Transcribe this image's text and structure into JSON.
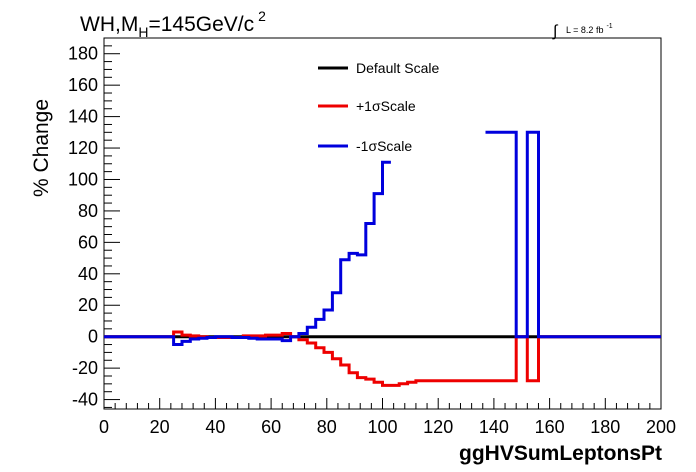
{
  "chart_data": {
    "type": "line",
    "title": {
      "prefix": "WH,M",
      "sub": "H",
      "middle": "=145GeV/c",
      "sup": "2"
    },
    "lumi": {
      "symbol": "∫",
      "text": "L = 8.2 fb",
      "sup": "-1"
    },
    "xlabel": "ggHVSumLeptonsPt",
    "ylabel": "% Change",
    "xlim": [
      0,
      200
    ],
    "ylim": [
      -46,
      190
    ],
    "x_ticks": [
      "0",
      "20",
      "40",
      "60",
      "80",
      "100",
      "120",
      "140",
      "160",
      "180",
      "200"
    ],
    "y_ticks": [
      "-40",
      "-20",
      "0",
      "20",
      "40",
      "60",
      "80",
      "100",
      "120",
      "140",
      "160",
      "180"
    ],
    "legend_position": "top-center",
    "series": [
      {
        "name": "Default Scale",
        "color": "#000000",
        "points": [
          [
            0,
            0
          ],
          [
            200,
            0
          ]
        ]
      },
      {
        "name": "+1σScale",
        "color": "#ee0000",
        "points": [
          [
            0,
            0
          ],
          [
            25,
            0
          ],
          [
            25,
            3
          ],
          [
            28,
            3
          ],
          [
            28,
            1
          ],
          [
            31,
            1
          ],
          [
            31,
            0.5
          ],
          [
            34,
            0.5
          ],
          [
            34,
            0
          ],
          [
            37,
            0
          ],
          [
            37,
            -0.5
          ],
          [
            50,
            -0.5
          ],
          [
            50,
            0.5
          ],
          [
            58,
            0.5
          ],
          [
            58,
            1
          ],
          [
            64,
            1
          ],
          [
            64,
            2
          ],
          [
            67,
            2
          ],
          [
            67,
            0
          ],
          [
            70,
            0
          ],
          [
            70,
            -2
          ],
          [
            73,
            -2
          ],
          [
            73,
            -4
          ],
          [
            76,
            -4
          ],
          [
            76,
            -7
          ],
          [
            79,
            -7
          ],
          [
            79,
            -10
          ],
          [
            82,
            -10
          ],
          [
            82,
            -14
          ],
          [
            85,
            -14
          ],
          [
            85,
            -18
          ],
          [
            88,
            -18
          ],
          [
            88,
            -23
          ],
          [
            91,
            -23
          ],
          [
            91,
            -26
          ],
          [
            94,
            -26
          ],
          [
            94,
            -27
          ],
          [
            97,
            -27
          ],
          [
            97,
            -29
          ],
          [
            100,
            -29
          ],
          [
            100,
            -31
          ],
          [
            106,
            -31
          ],
          [
            106,
            -30
          ],
          [
            109,
            -30
          ],
          [
            109,
            -29
          ],
          [
            112,
            -29
          ],
          [
            112,
            -28
          ],
          [
            148,
            -28
          ],
          [
            148,
            0
          ],
          [
            152,
            0
          ],
          [
            152,
            -28
          ],
          [
            156,
            -28
          ],
          [
            156,
            0
          ],
          [
            200,
            0
          ]
        ]
      },
      {
        "name": "-1σScale",
        "color": "#0000dd",
        "points": [
          [
            0,
            0
          ],
          [
            25,
            0
          ],
          [
            25,
            -5
          ],
          [
            28,
            -5
          ],
          [
            28,
            -3
          ],
          [
            31,
            -3
          ],
          [
            31,
            -1.5
          ],
          [
            34,
            -1.5
          ],
          [
            34,
            -1
          ],
          [
            37,
            -1
          ],
          [
            37,
            -0.5
          ],
          [
            40,
            -0.5
          ],
          [
            40,
            0
          ],
          [
            43,
            0
          ],
          [
            43,
            0
          ],
          [
            46,
            0
          ],
          [
            46,
            -0.5
          ],
          [
            52,
            -0.5
          ],
          [
            52,
            -1
          ],
          [
            55,
            -1
          ],
          [
            55,
            -1.5
          ],
          [
            64,
            -1.5
          ],
          [
            64,
            -2.5
          ],
          [
            67,
            -2.5
          ],
          [
            67,
            0
          ],
          [
            70,
            0
          ],
          [
            70,
            2
          ],
          [
            73,
            2
          ],
          [
            73,
            6
          ],
          [
            76,
            6
          ],
          [
            76,
            11
          ],
          [
            79,
            11
          ],
          [
            79,
            17
          ],
          [
            82,
            17
          ],
          [
            82,
            28
          ],
          [
            85,
            28
          ],
          [
            85,
            49
          ],
          [
            88,
            49
          ],
          [
            88,
            53
          ],
          [
            91,
            53
          ],
          [
            91,
            52
          ],
          [
            94,
            52
          ],
          [
            94,
            72
          ],
          [
            97,
            72
          ],
          [
            97,
            91
          ],
          [
            100,
            91
          ],
          [
            100,
            111
          ],
          [
            103,
            111
          ]
        ],
        "extra_segments": [
          [
            [
              137,
              130
            ],
            [
              148,
              130
            ],
            [
              148,
              0
            ],
            [
              152,
              0
            ],
            [
              152,
              130
            ],
            [
              156,
              130
            ],
            [
              156,
              0
            ],
            [
              200,
              0
            ]
          ]
        ]
      }
    ]
  }
}
